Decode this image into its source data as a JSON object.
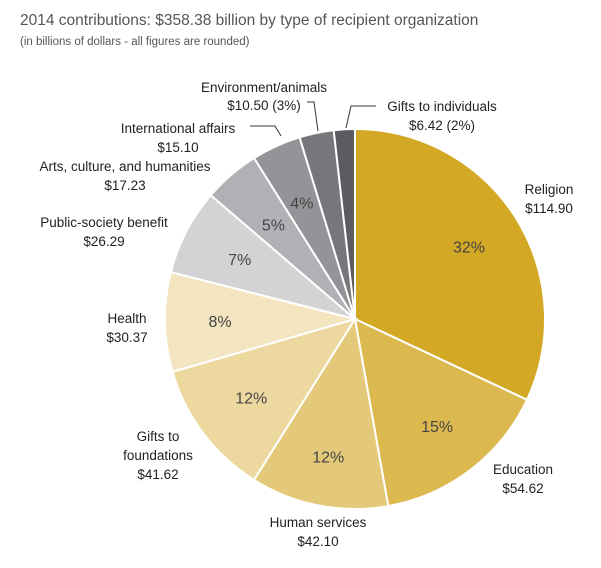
{
  "chart_data": {
    "type": "pie",
    "title": "2014 contributions: $358.38 billion by type of recipient organization",
    "subtitle": "(in billions of dollars - all figures are rounded)",
    "slices": [
      {
        "name": "Religion",
        "value": 114.9,
        "value_label": "$114.90",
        "pct_label": "32%",
        "color": "#D3A824"
      },
      {
        "name": "Education",
        "value": 54.62,
        "value_label": "$54.62",
        "pct_label": "15%",
        "color": "#DCB94E"
      },
      {
        "name": "Human services",
        "value": 42.1,
        "value_label": "$42.10",
        "pct_label": "12%",
        "color": "#E5C97A"
      },
      {
        "name": "Gifts to foundations",
        "value": 41.62,
        "value_label": "$41.62",
        "pct_label": "12%",
        "color": "#EDD9A0"
      },
      {
        "name": "Health",
        "value": 30.37,
        "value_label": "$30.37",
        "pct_label": "8%",
        "color": "#F2E5C0"
      },
      {
        "name": "Public-society benefit",
        "value": 26.29,
        "value_label": "$26.29",
        "pct_label": "7%",
        "color": "#D2D3D5"
      },
      {
        "name": "Arts, culture, and humanities",
        "value": 17.23,
        "value_label": "$17.23",
        "pct_label": "5%",
        "color": "#B0B1B4"
      },
      {
        "name": "International affairs",
        "value": 15.1,
        "value_label": "$15.10",
        "pct_label": "4%",
        "color": "#939497"
      },
      {
        "name": "Environment/animals",
        "value": 10.5,
        "value_label": "$10.50 (3%)",
        "pct_label": "",
        "color": "#76777A"
      },
      {
        "name": "Gifts to individuals",
        "value": 6.42,
        "value_label": "$6.42 (2%)",
        "pct_label": "",
        "color": "#5B5C5F"
      }
    ]
  }
}
